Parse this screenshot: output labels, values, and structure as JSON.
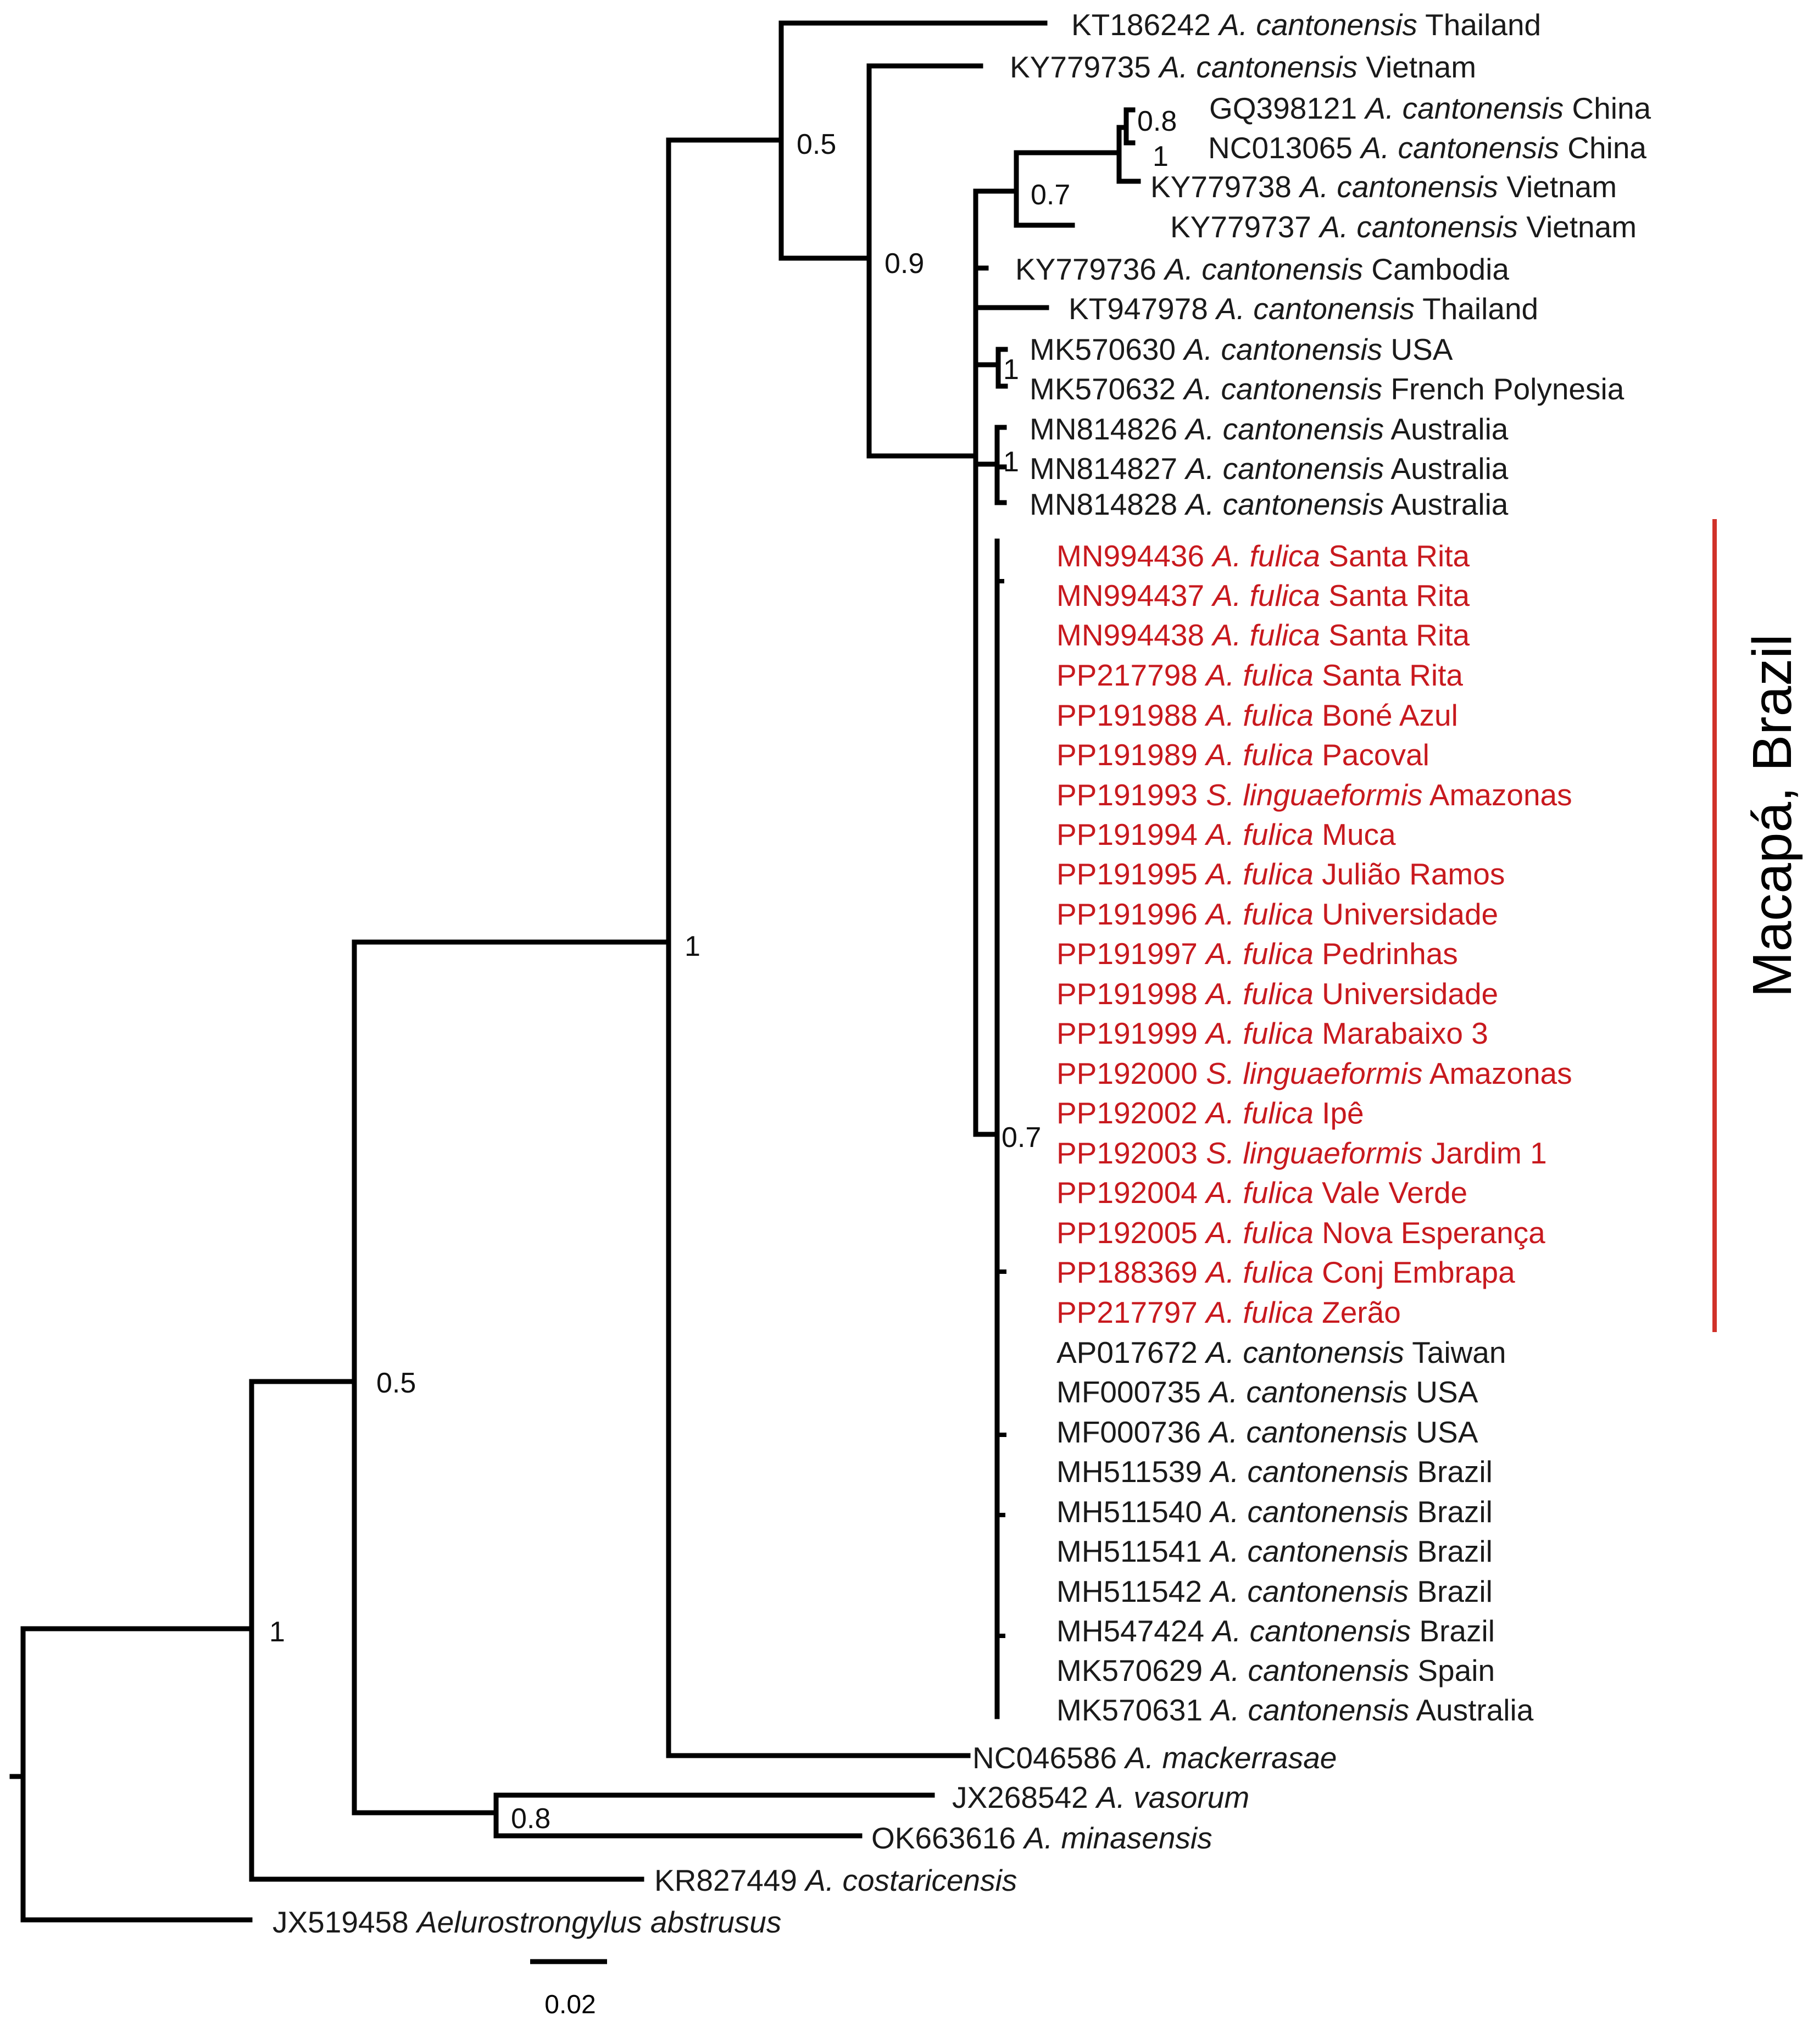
{
  "colors": {
    "branch": "#000000",
    "default_label": "#1a1a1a",
    "highlight": "#c8191e",
    "clade_bar": "#d0322a"
  },
  "clade_label": "Macapá, Brazil",
  "scale": {
    "label": "0.02",
    "value": 0.02
  },
  "support": {
    "s_root_1": "1",
    "s_05_left": "0.5",
    "s_1_main": "1",
    "s_05_top": "0.5",
    "s_09": "0.9",
    "s_07_china": "0.7",
    "s_08_china": "0.8",
    "s_1_china": "1",
    "s_1_usa": "1",
    "s_1_aus": "1",
    "s_07_macapa": "0.7",
    "s_08_vas": "0.8"
  },
  "leaves": [
    {
      "acc": "KT186242",
      "sp": "A. cantonensis",
      "loc": "Thailand"
    },
    {
      "acc": "KY779735",
      "sp": "A. cantonensis",
      "loc": "Vietnam"
    },
    {
      "acc": "GQ398121",
      "sp": "A. cantonensis",
      "loc": "China"
    },
    {
      "acc": "NC013065",
      "sp": "A. cantonensis",
      "loc": "China"
    },
    {
      "acc": "KY779738",
      "sp": "A. cantonensis",
      "loc": "Vietnam"
    },
    {
      "acc": "KY779737",
      "sp": "A. cantonensis",
      "loc": "Vietnam"
    },
    {
      "acc": "KY779736",
      "sp": "A. cantonensis",
      "loc": "Cambodia"
    },
    {
      "acc": "KT947978",
      "sp": "A. cantonensis",
      "loc": "Thailand"
    },
    {
      "acc": "MK570630",
      "sp": "A. cantonensis",
      "loc": "USA"
    },
    {
      "acc": "MK570632",
      "sp": "A. cantonensis",
      "loc": "French Polynesia"
    },
    {
      "acc": "MN814826",
      "sp": "A. cantonensis",
      "loc": "Australia"
    },
    {
      "acc": "MN814827",
      "sp": "A. cantonensis",
      "loc": "Australia"
    },
    {
      "acc": "MN814828",
      "sp": "A. cantonensis",
      "loc": "Australia"
    },
    {
      "acc": "MN994436",
      "sp": "A. fulica",
      "loc": "Santa Rita",
      "red": true
    },
    {
      "acc": "MN994437",
      "sp": "A. fulica",
      "loc": "Santa Rita",
      "red": true
    },
    {
      "acc": "MN994438",
      "sp": "A. fulica",
      "loc": "Santa Rita",
      "red": true
    },
    {
      "acc": "PP217798",
      "sp": "A. fulica",
      "loc": "Santa Rita",
      "red": true
    },
    {
      "acc": "PP191988",
      "sp": "A. fulica",
      "loc": "Boné Azul",
      "red": true
    },
    {
      "acc": "PP191989",
      "sp": "A. fulica",
      "loc": "Pacoval",
      "red": true
    },
    {
      "acc": "PP191993",
      "sp": "S. linguaeformis",
      "loc": "Amazonas",
      "red": true
    },
    {
      "acc": "PP191994",
      "sp": "A. fulica",
      "loc": "Muca",
      "red": true
    },
    {
      "acc": "PP191995",
      "sp": "A. fulica",
      "loc": "Julião Ramos",
      "red": true
    },
    {
      "acc": "PP191996",
      "sp": "A. fulica",
      "loc": "Universidade",
      "red": true
    },
    {
      "acc": "PP191997",
      "sp": "A. fulica",
      "loc": "Pedrinhas",
      "red": true
    },
    {
      "acc": "PP191998",
      "sp": "A. fulica",
      "loc": "Universidade",
      "red": true
    },
    {
      "acc": "PP191999",
      "sp": "A. fulica",
      "loc": "Marabaixo 3",
      "red": true
    },
    {
      "acc": "PP192000",
      "sp": "S. linguaeformis",
      "loc": "Amazonas",
      "red": true
    },
    {
      "acc": "PP192002",
      "sp": "A. fulica",
      "loc": "Ipê",
      "red": true
    },
    {
      "acc": "PP192003",
      "sp": "S. linguaeformis",
      "loc": "Jardim 1",
      "red": true
    },
    {
      "acc": "PP192004",
      "sp": "A. fulica",
      "loc": "Vale Verde",
      "red": true
    },
    {
      "acc": "PP192005",
      "sp": "A. fulica",
      "loc": "Nova Esperança",
      "red": true
    },
    {
      "acc": "PP188369",
      "sp": "A. fulica",
      "loc": "Conj Embrapa",
      "red": true
    },
    {
      "acc": "PP217797",
      "sp": "A. fulica",
      "loc": "Zerão",
      "red": true
    },
    {
      "acc": "AP017672",
      "sp": "A. cantonensis",
      "loc": "Taiwan"
    },
    {
      "acc": "MF000735",
      "sp": "A. cantonensis",
      "loc": "USA"
    },
    {
      "acc": "MF000736",
      "sp": "A. cantonensis",
      "loc": "USA"
    },
    {
      "acc": "MH511539",
      "sp": "A. cantonensis",
      "loc": "Brazil"
    },
    {
      "acc": "MH511540",
      "sp": "A. cantonensis",
      "loc": "Brazil"
    },
    {
      "acc": "MH511541",
      "sp": "A. cantonensis",
      "loc": "Brazil"
    },
    {
      "acc": "MH511542",
      "sp": "A. cantonensis",
      "loc": "Brazil"
    },
    {
      "acc": "MH547424",
      "sp": "A. cantonensis",
      "loc": "Brazil"
    },
    {
      "acc": "MK570629",
      "sp": "A. cantonensis",
      "loc": "Spain"
    },
    {
      "acc": "MK570631",
      "sp": "A. cantonensis",
      "loc": "Australia"
    },
    {
      "acc": "NC046586",
      "sp": "A. mackerrasae",
      "loc": ""
    },
    {
      "acc": "JX268542",
      "sp": "A. vasorum",
      "loc": ""
    },
    {
      "acc": "OK663616",
      "sp": "A. minasensis",
      "loc": ""
    },
    {
      "acc": "KR827449",
      "sp": "A. costaricensis",
      "loc": ""
    },
    {
      "acc": "JX519458",
      "sp": "Aelurostrongylus abstrusus",
      "loc": ""
    }
  ]
}
